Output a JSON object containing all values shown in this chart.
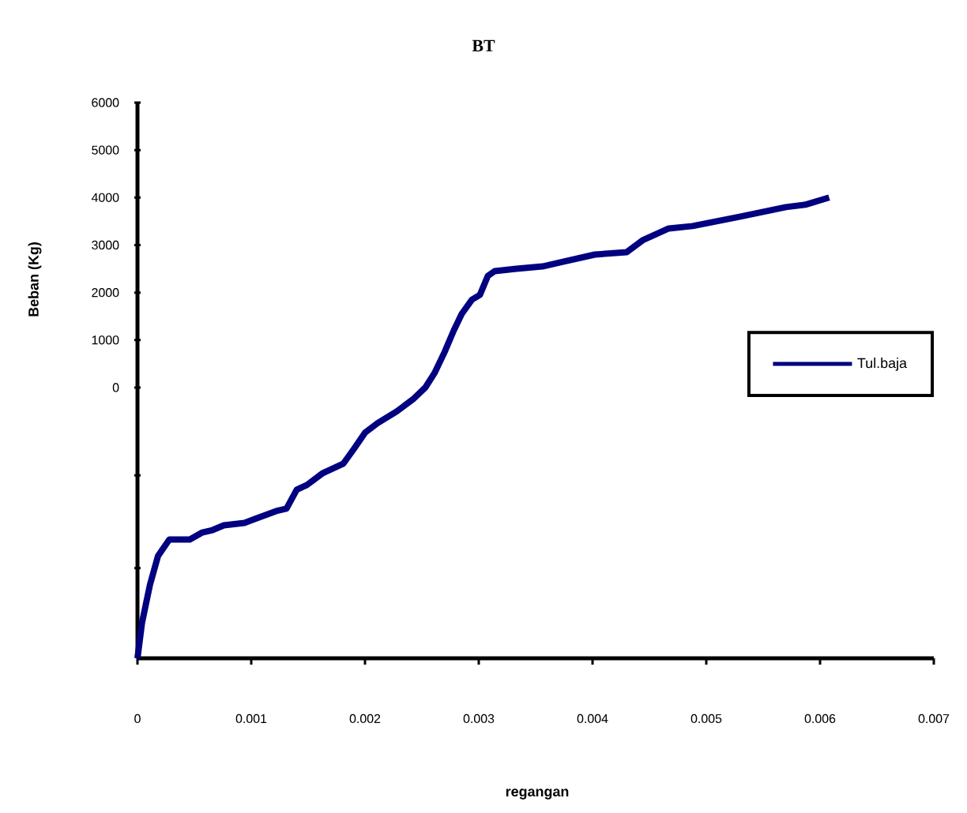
{
  "chart_data": {
    "type": "line",
    "title": "BT",
    "xlabel": "regangan",
    "ylabel": "Beban (Kg)",
    "x": [
      0,
      4e-05,
      0.00011,
      0.00018,
      0.00028,
      0.00046,
      0.00057,
      0.00066,
      0.00076,
      0.00094,
      0.00105,
      0.00122,
      0.00131,
      0.0014,
      0.00149,
      0.00163,
      0.00181,
      0.0019,
      0.002,
      0.00211,
      0.00228,
      0.00242,
      0.00253,
      0.00261,
      0.0027,
      0.00278,
      0.00285,
      0.00294,
      0.00301,
      0.00308,
      0.00314,
      0.00333,
      0.00356,
      0.00374,
      0.00402,
      0.0043,
      0.00444,
      0.00467,
      0.00488,
      0.0053,
      0.0057,
      0.00587,
      0.00608
    ],
    "series": [
      {
        "name": "Tul.baja",
        "color": "#000080",
        "values": [
          -5700,
          -4950,
          -4150,
          -3550,
          -3200,
          -3200,
          -3050,
          -3000,
          -2900,
          -2850,
          -2750,
          -2600,
          -2550,
          -2150,
          -2050,
          -1800,
          -1600,
          -1300,
          -950,
          -750,
          -500,
          -250,
          0,
          300,
          750,
          1200,
          1550,
          1850,
          1950,
          2350,
          2450,
          2500,
          2550,
          2650,
          2800,
          2850,
          3100,
          3350,
          3400,
          3600,
          3800,
          3850,
          4000
        ]
      }
    ],
    "xlim": [
      0,
      0.007
    ],
    "ylim": [
      -5700,
      6000
    ],
    "xticks": [
      0,
      0.001,
      0.002,
      0.003,
      0.004,
      0.005,
      0.006,
      0.007
    ],
    "yticks": [
      {
        "value": -3800,
        "label": null
      },
      {
        "value": -1850,
        "label": null
      },
      0,
      1000,
      2000,
      3000,
      4000,
      5000,
      6000
    ],
    "legend": "right",
    "grid": false,
    "line_style": "solid",
    "marker": "none"
  }
}
